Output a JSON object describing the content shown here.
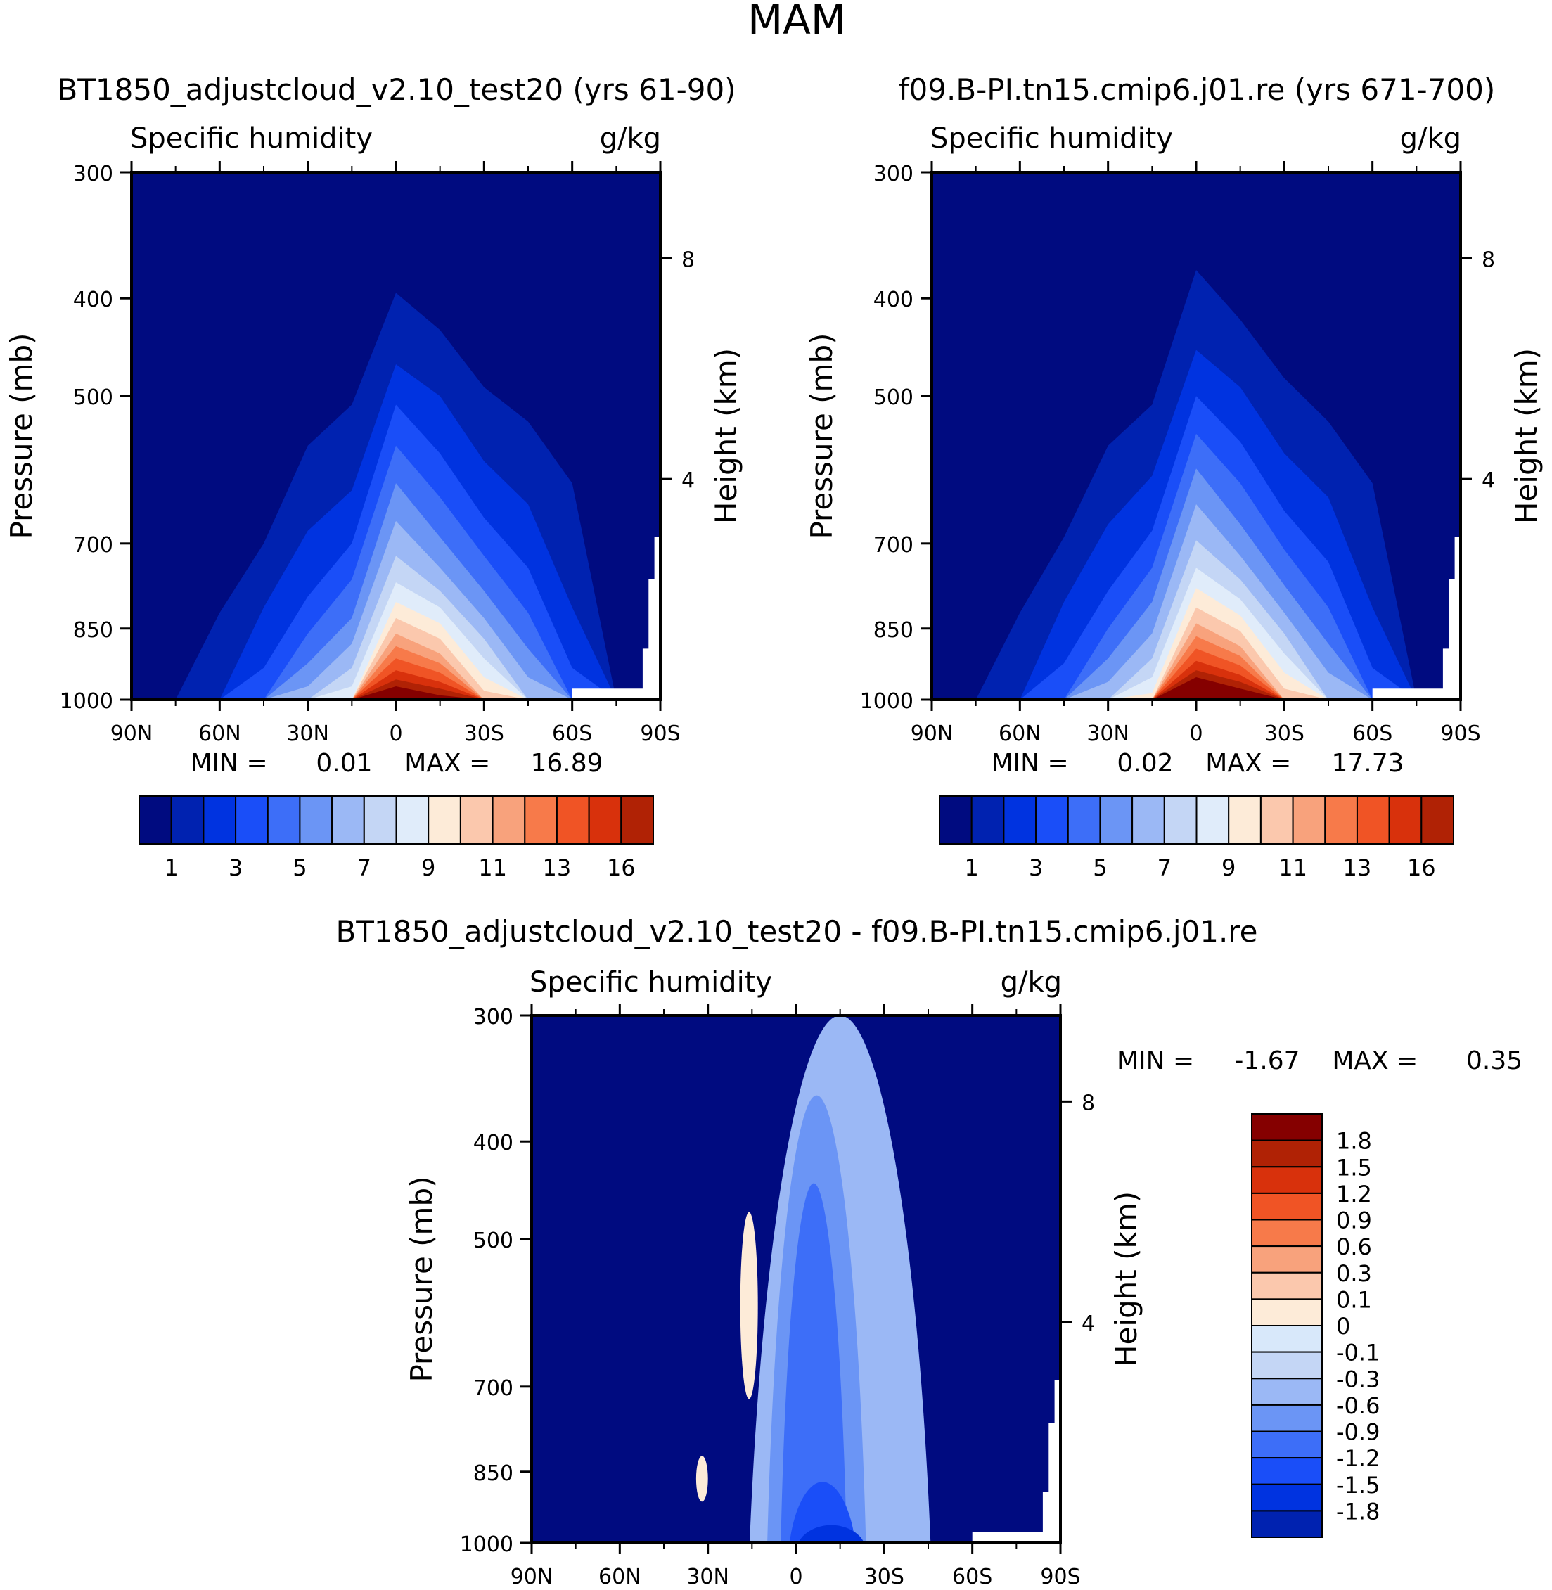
{
  "figure_title": "MAM",
  "colors": {
    "abs": [
      "#000b80",
      "#0022b0",
      "#0033e0",
      "#1a4ef8",
      "#3d6ef8",
      "#6b95f5",
      "#9bb8f5",
      "#c4d6f5",
      "#e0ecfa",
      "#fdebd8",
      "#fbc8ad",
      "#f8a27c",
      "#f77a4a",
      "#f05425",
      "#d8310c",
      "#b02205",
      "#850000"
    ],
    "diff": [
      "#000b80",
      "#0022b0",
      "#0033e0",
      "#1a4ef8",
      "#3d6ef8",
      "#6b95f5",
      "#9bb8f5",
      "#c4d6f5",
      "#d8e8fa",
      "#fdebd8",
      "#fbc8ad",
      "#f8a27c",
      "#f77a4a",
      "#f05425",
      "#d8310c",
      "#b02205",
      "#850000"
    ],
    "missing": "#ffffff",
    "axis": "#000000"
  },
  "chart_data": [
    {
      "type": "heatmap",
      "id": "left",
      "title": "BT1850_adjustcloud_v2.10_test20 (yrs 61-90)",
      "left_label": "Specific humidity",
      "right_label": "g/kg",
      "ylabel": "Pressure (mb)",
      "ylabel_right": "Height (km)",
      "x_ticks": [
        "90N",
        "60N",
        "30N",
        "0",
        "30S",
        "60S",
        "90S"
      ],
      "x_values": [
        90,
        60,
        30,
        0,
        -30,
        -60,
        -90
      ],
      "xlim": [
        90,
        -90
      ],
      "y_ticks": [
        "300",
        "400",
        "500",
        "700",
        "850",
        "1000"
      ],
      "y_values": [
        300,
        400,
        500,
        700,
        850,
        1000
      ],
      "ylim": [
        300,
        1000
      ],
      "height_ticks": [
        "8",
        "4"
      ],
      "height_values_km": [
        8,
        4
      ],
      "min_max_text": "MIN =      0.01    MAX =     16.89",
      "min": 0.01,
      "max": 16.89,
      "colorbar_ticks": [
        "1",
        "3",
        "5",
        "7",
        "9",
        "11",
        "13",
        "16"
      ],
      "colorbar_orientation": "horizontal",
      "nlev": 16,
      "latitudes": [
        90,
        75,
        60,
        45,
        30,
        15,
        0,
        -15,
        -30,
        -45,
        -60,
        -75,
        -90
      ],
      "peak_lat": 0,
      "level_top_mb": {
        "1": [
          1000,
          1000,
          820,
          700,
          560,
          510,
          395,
          430,
          490,
          530,
          610,
          1000,
          1000
        ],
        "2": [
          1000,
          1000,
          1000,
          810,
          680,
          620,
          465,
          500,
          580,
          640,
          810,
          1000,
          1000
        ],
        "3": [
          1000,
          1000,
          1000,
          930,
          790,
          700,
          510,
          570,
          660,
          740,
          930,
          1000,
          1000
        ],
        "4": [
          1000,
          1000,
          1000,
          1000,
          860,
          760,
          560,
          630,
          720,
          820,
          1000,
          1000,
          1000
        ],
        "5": [
          1000,
          1000,
          1000,
          1000,
          920,
          830,
          610,
          690,
          780,
          890,
          1000,
          1000,
          1000
        ],
        "6": [
          1000,
          1000,
          1000,
          1000,
          970,
          880,
          665,
          740,
          830,
          950,
          1000,
          1000,
          1000
        ],
        "7": [
          1000,
          1000,
          1000,
          1000,
          1000,
          930,
          720,
          780,
          870,
          1000,
          1000,
          1000,
          1000
        ],
        "8": [
          1000,
          1000,
          1000,
          1000,
          1000,
          970,
          765,
          810,
          910,
          1000,
          1000,
          1000,
          1000
        ],
        "9": [
          1000,
          1000,
          1000,
          1000,
          1000,
          1000,
          800,
          840,
          950,
          1000,
          1000,
          1000,
          1000
        ],
        "10": [
          1000,
          1000,
          1000,
          1000,
          1000,
          1000,
          830,
          870,
          980,
          1000,
          1000,
          1000,
          1000
        ],
        "11": [
          1000,
          1000,
          1000,
          1000,
          1000,
          1000,
          860,
          900,
          1000,
          1000,
          1000,
          1000,
          1000
        ],
        "12": [
          1000,
          1000,
          1000,
          1000,
          1000,
          1000,
          885,
          920,
          1000,
          1000,
          1000,
          1000,
          1000
        ],
        "13": [
          1000,
          1000,
          1000,
          1000,
          1000,
          1000,
          910,
          940,
          1000,
          1000,
          1000,
          1000,
          1000
        ],
        "14": [
          1000,
          1000,
          1000,
          1000,
          1000,
          1000,
          935,
          960,
          1000,
          1000,
          1000,
          1000,
          1000
        ],
        "15": [
          1000,
          1000,
          1000,
          1000,
          1000,
          1000,
          955,
          975,
          1000,
          1000,
          1000,
          1000,
          1000
        ],
        "16": [
          1000,
          1000,
          1000,
          1000,
          1000,
          1000,
          970,
          990,
          1000,
          1000,
          1000,
          1000,
          1000
        ]
      }
    },
    {
      "type": "heatmap",
      "id": "right",
      "title": "f09.B-PI.tn15.cmip6.j01.re (yrs 671-700)",
      "left_label": "Specific humidity",
      "right_label": "g/kg",
      "ylabel": "Pressure (mb)",
      "ylabel_right": "Height (km)",
      "x_ticks": [
        "90N",
        "60N",
        "30N",
        "0",
        "30S",
        "60S",
        "90S"
      ],
      "x_values": [
        90,
        60,
        30,
        0,
        -30,
        -60,
        -90
      ],
      "xlim": [
        90,
        -90
      ],
      "y_ticks": [
        "300",
        "400",
        "500",
        "700",
        "850",
        "1000"
      ],
      "y_values": [
        300,
        400,
        500,
        700,
        850,
        1000
      ],
      "ylim": [
        300,
        1000
      ],
      "height_ticks": [
        "8",
        "4"
      ],
      "height_values_km": [
        8,
        4
      ],
      "min_max_text": "MIN =      0.02    MAX =     17.73",
      "min": 0.02,
      "max": 17.73,
      "colorbar_ticks": [
        "1",
        "3",
        "5",
        "7",
        "9",
        "11",
        "13",
        "16"
      ],
      "colorbar_orientation": "horizontal",
      "nlev": 16,
      "latitudes": [
        90,
        75,
        60,
        45,
        30,
        15,
        0,
        -15,
        -30,
        -45,
        -60,
        -75,
        -90
      ],
      "peak_lat": 0,
      "level_top_mb": {
        "1": [
          1000,
          1000,
          820,
          690,
          560,
          510,
          375,
          420,
          480,
          530,
          610,
          1000,
          1000
        ],
        "2": [
          1000,
          1000,
          1000,
          800,
          670,
          600,
          450,
          490,
          570,
          630,
          810,
          1000,
          1000
        ],
        "3": [
          1000,
          1000,
          1000,
          920,
          780,
          680,
          500,
          555,
          650,
          730,
          930,
          1000,
          1000
        ],
        "4": [
          1000,
          1000,
          1000,
          1000,
          850,
          740,
          545,
          610,
          710,
          810,
          1000,
          1000,
          1000
        ],
        "5": [
          1000,
          1000,
          1000,
          1000,
          910,
          800,
          590,
          670,
          770,
          880,
          1000,
          1000,
          1000
        ],
        "6": [
          1000,
          1000,
          1000,
          1000,
          960,
          860,
          640,
          720,
          820,
          940,
          1000,
          1000,
          1000
        ],
        "7": [
          1000,
          1000,
          1000,
          1000,
          1000,
          910,
          695,
          760,
          860,
          1000,
          1000,
          1000,
          1000
        ],
        "8": [
          1000,
          1000,
          1000,
          1000,
          1000,
          950,
          740,
          795,
          900,
          1000,
          1000,
          1000,
          1000
        ],
        "9": [
          1000,
          1000,
          1000,
          1000,
          1000,
          985,
          775,
          825,
          940,
          1000,
          1000,
          1000,
          1000
        ],
        "10": [
          1000,
          1000,
          1000,
          1000,
          1000,
          1000,
          810,
          855,
          975,
          1000,
          1000,
          1000,
          1000
        ],
        "11": [
          1000,
          1000,
          1000,
          1000,
          1000,
          1000,
          840,
          885,
          1000,
          1000,
          1000,
          1000,
          1000
        ],
        "12": [
          1000,
          1000,
          1000,
          1000,
          1000,
          1000,
          865,
          905,
          1000,
          1000,
          1000,
          1000,
          1000
        ],
        "13": [
          1000,
          1000,
          1000,
          1000,
          1000,
          1000,
          890,
          925,
          1000,
          1000,
          1000,
          1000,
          1000
        ],
        "14": [
          1000,
          1000,
          1000,
          1000,
          1000,
          1000,
          915,
          945,
          1000,
          1000,
          1000,
          1000,
          1000
        ],
        "15": [
          1000,
          1000,
          1000,
          1000,
          1000,
          1000,
          935,
          960,
          1000,
          1000,
          1000,
          1000,
          1000
        ],
        "16": [
          1000,
          1000,
          1000,
          1000,
          1000,
          1000,
          950,
          975,
          1000,
          1000,
          1000,
          1000,
          1000
        ]
      }
    },
    {
      "type": "heatmap",
      "id": "diff",
      "title": "BT1850_adjustcloud_v2.10_test20 - f09.B-PI.tn15.cmip6.j01.re",
      "left_label": "Specific humidity",
      "right_label": "g/kg",
      "ylabel": "Pressure (mb)",
      "ylabel_right": "Height (km)",
      "x_ticks": [
        "90N",
        "60N",
        "30N",
        "0",
        "30S",
        "60S",
        "90S"
      ],
      "x_values": [
        90,
        60,
        30,
        0,
        -30,
        -60,
        -90
      ],
      "xlim": [
        90,
        -90
      ],
      "y_ticks": [
        "300",
        "400",
        "500",
        "700",
        "850",
        "1000"
      ],
      "y_values": [
        300,
        400,
        500,
        700,
        850,
        1000
      ],
      "ylim": [
        300,
        1000
      ],
      "height_ticks": [
        "8",
        "4"
      ],
      "height_values_km": [
        8,
        4
      ],
      "min_max_text": "MIN =     -1.67    MAX =      0.35",
      "min": -1.67,
      "max": 0.35,
      "colorbar_ticks": [
        "1.8",
        "1.5",
        "1.2",
        "0.9",
        "0.6",
        "0.3",
        "0.1",
        "0",
        "-0.1",
        "-0.3",
        "-0.6",
        "-0.9",
        "-1.2",
        "-1.5",
        "-1.8"
      ],
      "colorbar_orientation": "vertical",
      "neg_regions": [
        {
          "level": -0.1,
          "center_lat": -15,
          "half_width_deg": 22,
          "top_mb": 300
        },
        {
          "level": -0.3,
          "center_lat": -7,
          "half_width_deg": 12,
          "top_mb": 360
        },
        {
          "level": -0.6,
          "center_lat": -6,
          "half_width_deg": 8,
          "top_mb": 440
        },
        {
          "level": -0.9,
          "center_lat": -9,
          "half_width_deg": 8,
          "top_mb": 870
        },
        {
          "level": -1.2,
          "center_lat": -12,
          "half_width_deg": 8,
          "top_mb": 960
        }
      ],
      "pos_regions": [
        {
          "level": 0.1,
          "center_lat": 16,
          "half_width_deg": 3,
          "top_mb": 470,
          "bottom_mb": 720
        },
        {
          "level": 0.1,
          "center_lat": 32,
          "half_width_deg": 2,
          "top_mb": 820,
          "bottom_mb": 910
        }
      ]
    }
  ]
}
